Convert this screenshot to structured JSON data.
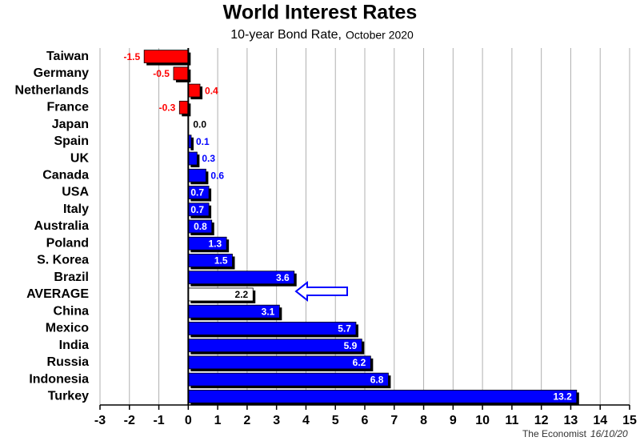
{
  "chart_data": {
    "type": "bar",
    "orientation": "horizontal",
    "title": "World Interest Rates",
    "subtitle": "10-year Bond Rate,",
    "subtitle_date": "October 2020",
    "source": "The Economist",
    "date": "16/10/20",
    "categories": [
      "Taiwan",
      "Germany",
      "Netherlands",
      "France",
      "Japan",
      "Spain",
      "UK",
      "Canada",
      "USA",
      "Italy",
      "Australia",
      "Poland",
      "S. Korea",
      "Brazil",
      "AVERAGE",
      "China",
      "Mexico",
      "India",
      "Russia",
      "Indonesia",
      "Turkey"
    ],
    "values": [
      -1.5,
      -0.5,
      0.4,
      -0.3,
      0,
      0.1,
      0.3,
      0.6,
      0.7,
      0.7,
      0.8,
      1.3,
      1.5,
      3.6,
      2.2,
      3.1,
      5.7,
      5.9,
      6.2,
      6.8,
      13.2
    ],
    "value_labels": [
      "-1.5",
      "-0.5",
      "0.4",
      "-0.3",
      "0.0",
      "0.1",
      "0.3",
      "0.6",
      "0.7",
      "0.7",
      "0.8",
      "1.3",
      "1.5",
      "3.6",
      "2.2",
      "3.1",
      "5.7",
      "5.9",
      "6.2",
      "6.8",
      "13.2"
    ],
    "colors": [
      "#ff0000",
      "#ff0000",
      "#ff0000",
      "#ff0000",
      "#000000",
      "#0000ff",
      "#0000ff",
      "#0000ff",
      "#0000ff",
      "#0000ff",
      "#0000ff",
      "#0000ff",
      "#0000ff",
      "#0000ff",
      "#ffffff",
      "#0000ff",
      "#0000ff",
      "#0000ff",
      "#0000ff",
      "#0000ff",
      "#0000ff"
    ],
    "xlim": [
      -3,
      15
    ],
    "xticks": [
      -3,
      -2,
      -1,
      0,
      1,
      2,
      3,
      4,
      5,
      6,
      7,
      8,
      9,
      10,
      11,
      12,
      13,
      14,
      15
    ],
    "grid": true
  }
}
